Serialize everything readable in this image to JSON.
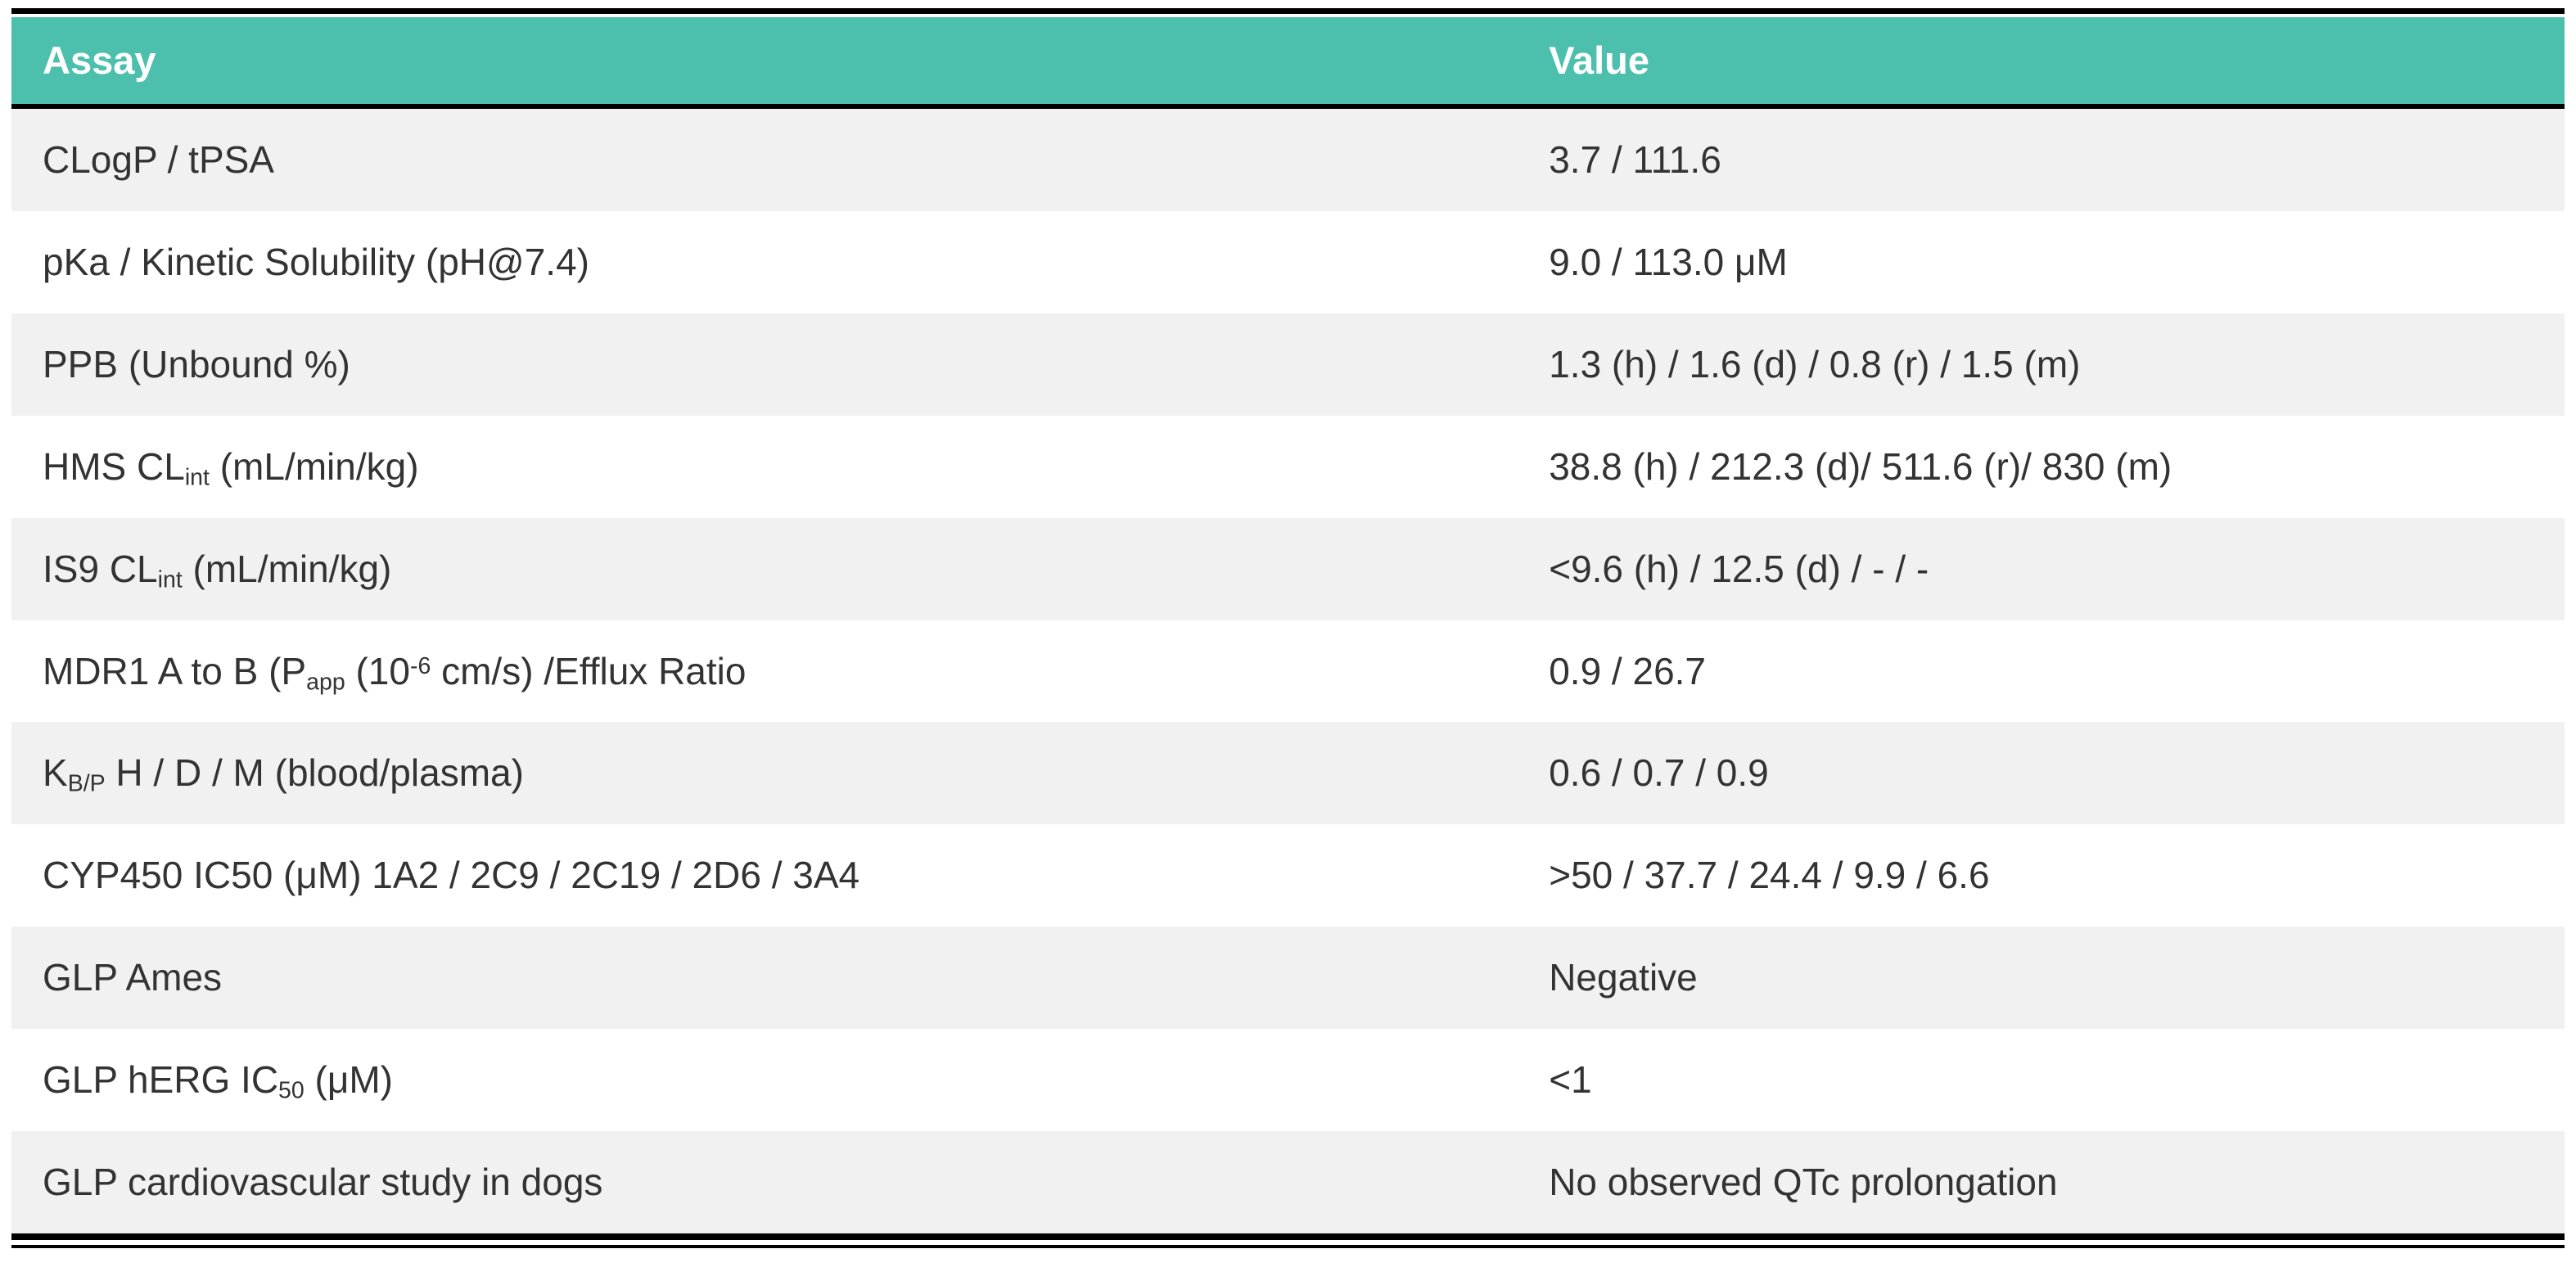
{
  "colors": {
    "header_bg": "#4CBFAD",
    "header_text": "#FFFFFF",
    "row_alt_bg": "#F1F1F2",
    "row_bg": "#FFFFFF",
    "body_text": "#333333",
    "rule": "#000000"
  },
  "chart_data": {
    "type": "table",
    "title": "",
    "columns": [
      "Assay",
      "Value"
    ],
    "rows": [
      [
        "CLogP / tPSA",
        "3.7 / 111.6"
      ],
      [
        "pKa / Kinetic Solubility (pH@7.4)",
        "9.0 / 113.0 μM"
      ],
      [
        "PPB (Unbound %)",
        "1.3 (h) / 1.6 (d) / 0.8 (r) / 1.5 (m)"
      ],
      [
        "HMS CLint (mL/min/kg)",
        "38.8 (h) / 212.3 (d)/ 511.6 (r)/ 830 (m)"
      ],
      [
        "IS9 CLint (mL/min/kg)",
        "<9.6 (h) / 12.5 (d) / - / -"
      ],
      [
        "MDR1 A to B (Papp (10-6 cm/s) /Efflux Ratio",
        "0.9 / 26.7"
      ],
      [
        "KB/P H / D / M (blood/plasma)",
        "0.6 / 0.7 / 0.9"
      ],
      [
        "CYP450 IC50 (μM) 1A2 / 2C9 / 2C19 / 2D6 / 3A4",
        ">50 / 37.7 / 24.4 / 9.9 / 6.6"
      ],
      [
        "GLP Ames",
        "Negative"
      ],
      [
        "GLP hERG IC50 (μM)",
        "<1"
      ],
      [
        "GLP cardiovascular study in dogs",
        "No observed QTc prolongation"
      ]
    ]
  },
  "table": {
    "assay_segments": [
      [
        {
          "t": "CLogP / tPSA"
        }
      ],
      [
        {
          "t": "pKa / Kinetic Solubility (pH@7.4)"
        }
      ],
      [
        {
          "t": "PPB (Unbound %)"
        }
      ],
      [
        {
          "t": "HMS CL"
        },
        {
          "t": "int",
          "v": "sub"
        },
        {
          "t": " (mL/min/kg)"
        }
      ],
      [
        {
          "t": "IS9 CL"
        },
        {
          "t": "int",
          "v": "sub"
        },
        {
          "t": " (mL/min/kg)"
        }
      ],
      [
        {
          "t": "MDR1 A to B (P"
        },
        {
          "t": "app",
          "v": "sub"
        },
        {
          "t": " (10"
        },
        {
          "t": "-6",
          "v": "sup"
        },
        {
          "t": " cm/s) /Efflux Ratio"
        }
      ],
      [
        {
          "t": "K"
        },
        {
          "t": "B/P",
          "v": "sub"
        },
        {
          "t": " H / D / M (blood/plasma)"
        }
      ],
      [
        {
          "t": "CYP450 IC50 (μM) 1A2 / 2C9 / 2C19 / 2D6 / 3A4"
        }
      ],
      [
        {
          "t": "GLP Ames"
        }
      ],
      [
        {
          "t": "GLP hERG IC"
        },
        {
          "t": "50",
          "v": "sub"
        },
        {
          "t": " (μM)"
        }
      ],
      [
        {
          "t": "GLP cardiovascular study in dogs"
        }
      ]
    ]
  }
}
